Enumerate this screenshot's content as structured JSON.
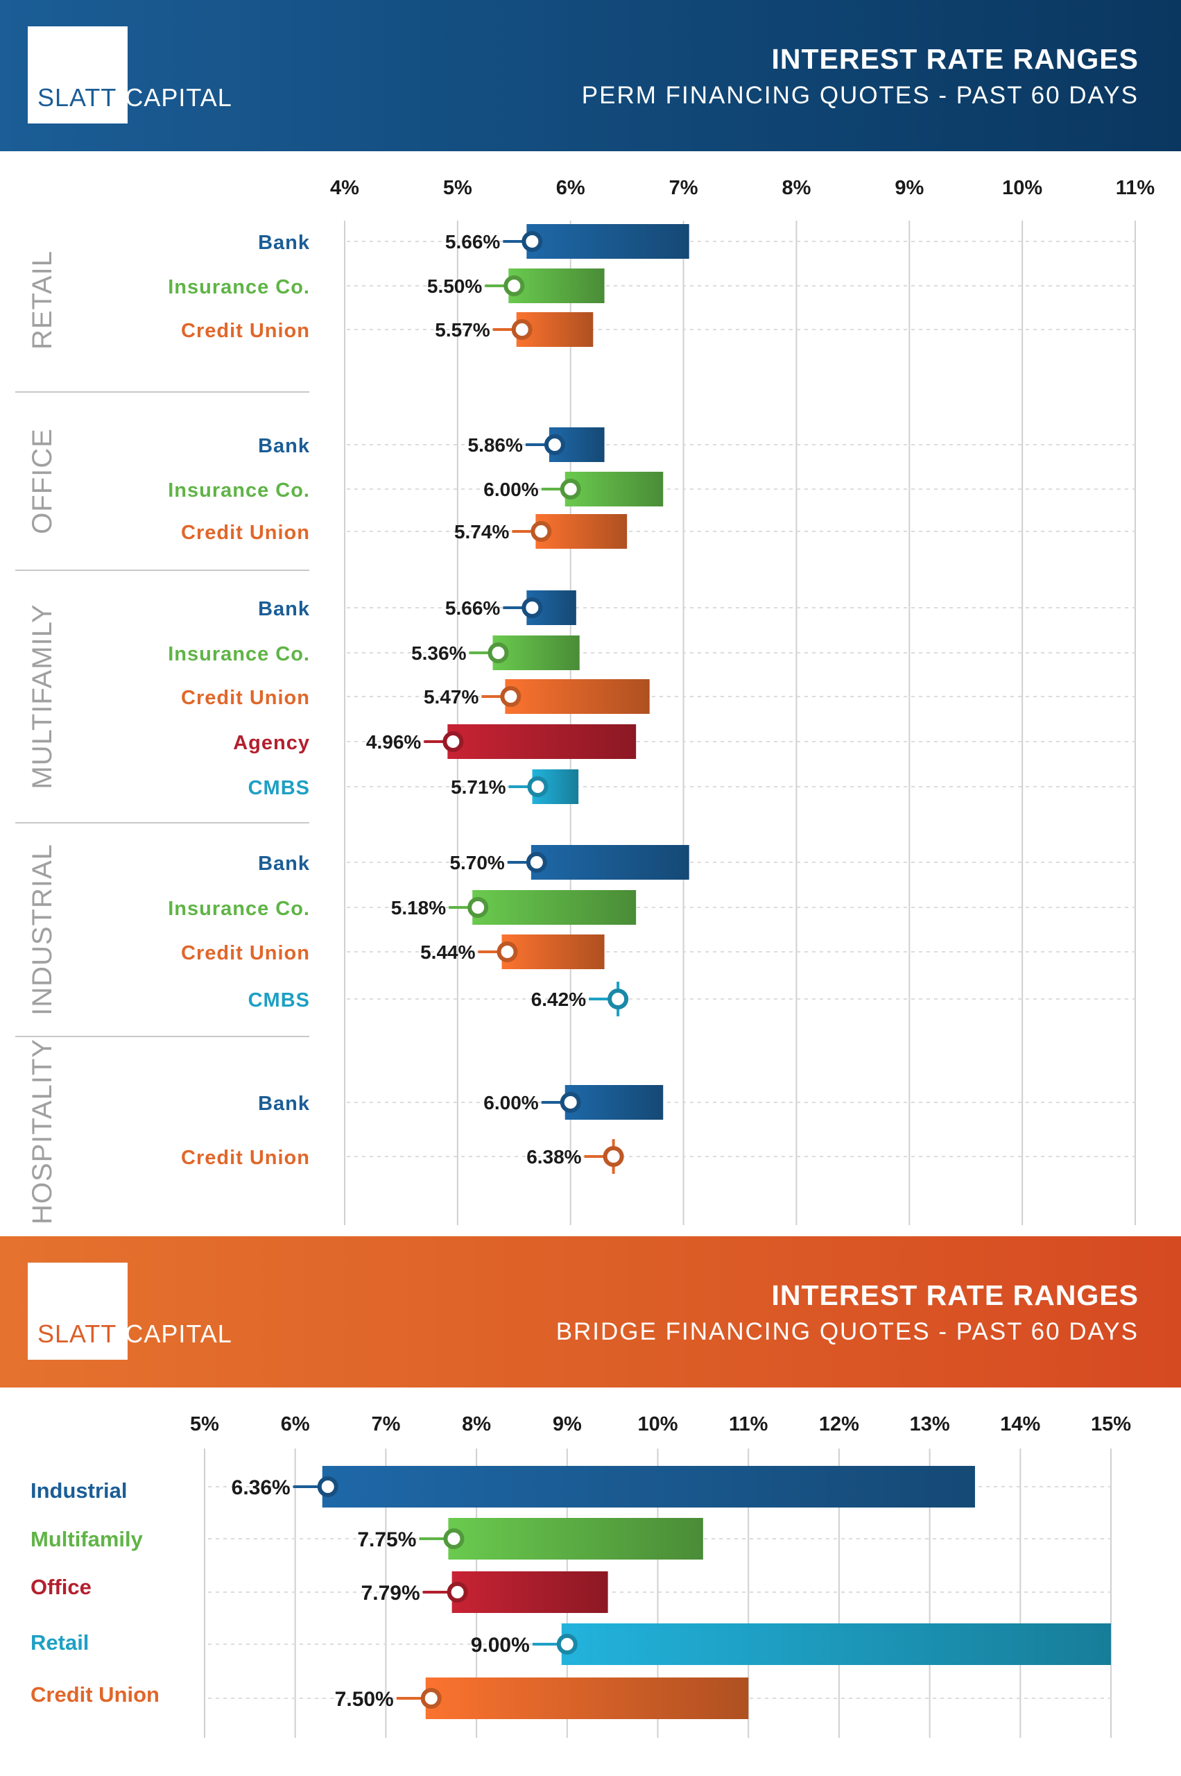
{
  "perm": {
    "logo": {
      "slatt": "SLATT",
      "capital": "CAPITAL"
    },
    "title": "INTEREST RATE RANGES",
    "subtitle": "PERM FINANCING QUOTES - PAST 60 DAYS"
  },
  "bridge": {
    "logo": {
      "slatt": "SLATT",
      "capital": "CAPITAL"
    },
    "title": "INTEREST RATE RANGES",
    "subtitle": "BRIDGE FINANCING QUOTES - PAST 60 DAYS"
  },
  "colors": {
    "Bank": "#1b5d96",
    "Insurance Co.": "#5fb446",
    "Credit Union": "#e0672a",
    "Agency": "#b31f2e",
    "CMBS": "#1ea0c4",
    "axis_text": "#1a1a1a",
    "group_text": "#a0a0a0",
    "grid": "#d0d0d0"
  },
  "chart_data": [
    {
      "type": "bar",
      "title": "INTEREST RATE RANGES",
      "subtitle": "PERM FINANCING QUOTES - PAST 60 DAYS",
      "xlim": [
        4,
        11
      ],
      "ticks": [
        4,
        5,
        6,
        7,
        8,
        9,
        10,
        11
      ],
      "tick_labels": [
        "4%",
        "5%",
        "6%",
        "7%",
        "8%",
        "9%",
        "10%",
        "11%"
      ],
      "groups": [
        {
          "name": "RETAIL",
          "rows": [
            {
              "lender": "Bank",
              "low": 5.66,
              "high": 7.05,
              "label": "5.66%"
            },
            {
              "lender": "Insurance Co.",
              "low": 5.5,
              "high": 6.3,
              "label": "5.50%"
            },
            {
              "lender": "Credit Union",
              "low": 5.57,
              "high": 6.2,
              "label": "5.57%"
            }
          ]
        },
        {
          "name": "OFFICE",
          "rows": [
            {
              "lender": "Bank",
              "low": 5.86,
              "high": 6.3,
              "label": "5.86%"
            },
            {
              "lender": "Insurance Co.",
              "low": 6.0,
              "high": 6.82,
              "label": "6.00%"
            },
            {
              "lender": "Credit Union",
              "low": 5.74,
              "high": 6.5,
              "label": "5.74%"
            }
          ]
        },
        {
          "name": "MULTIFAMILY",
          "rows": [
            {
              "lender": "Bank",
              "low": 5.66,
              "high": 6.05,
              "label": "5.66%"
            },
            {
              "lender": "Insurance Co.",
              "low": 5.36,
              "high": 6.08,
              "label": "5.36%"
            },
            {
              "lender": "Credit Union",
              "low": 5.47,
              "high": 6.7,
              "label": "5.47%"
            },
            {
              "lender": "Agency",
              "low": 4.96,
              "high": 6.58,
              "label": "4.96%"
            },
            {
              "lender": "CMBS",
              "low": 5.71,
              "high": 6.07,
              "label": "5.71%"
            }
          ]
        },
        {
          "name": "INDUSTRIAL",
          "rows": [
            {
              "lender": "Bank",
              "low": 5.7,
              "high": 7.05,
              "label": "5.70%"
            },
            {
              "lender": "Insurance Co.",
              "low": 5.18,
              "high": 6.58,
              "label": "5.18%"
            },
            {
              "lender": "Credit Union",
              "low": 5.44,
              "high": 6.3,
              "label": "5.44%"
            },
            {
              "lender": "CMBS",
              "low": 6.42,
              "high": 6.42,
              "label": "6.42%"
            }
          ]
        },
        {
          "name": "HOSPITALITY",
          "rows": [
            {
              "lender": "Bank",
              "low": 6.0,
              "high": 6.82,
              "label": "6.00%"
            },
            {
              "lender": "Credit Union",
              "low": 6.38,
              "high": 6.38,
              "label": "6.38%"
            }
          ]
        }
      ]
    },
    {
      "type": "bar",
      "title": "INTEREST RATE RANGES",
      "subtitle": "BRIDGE FINANCING QUOTES - PAST 60 DAYS",
      "xlim": [
        5,
        15
      ],
      "ticks": [
        5,
        6,
        7,
        8,
        9,
        10,
        11,
        12,
        13,
        14,
        15
      ],
      "tick_labels": [
        "5%",
        "6%",
        "7%",
        "8%",
        "9%",
        "10%",
        "11%",
        "12%",
        "13%",
        "14%",
        "15%"
      ],
      "rows": [
        {
          "category": "Industrial",
          "low": 6.36,
          "high": 13.5,
          "label": "6.36%",
          "color": "#1b5d96"
        },
        {
          "category": "Multifamily",
          "low": 7.75,
          "high": 10.5,
          "label": "7.75%",
          "color": "#5fb446"
        },
        {
          "category": "Office",
          "low": 7.79,
          "high": 9.45,
          "label": "7.79%",
          "color": "#b31f2e"
        },
        {
          "category": "Retail",
          "low": 9.0,
          "high": 15.0,
          "label": "9.00%",
          "color": "#1ea0c4"
        },
        {
          "category": "Credit Union",
          "low": 7.5,
          "high": 11.0,
          "label": "7.50%",
          "color": "#e0672a"
        }
      ]
    }
  ]
}
